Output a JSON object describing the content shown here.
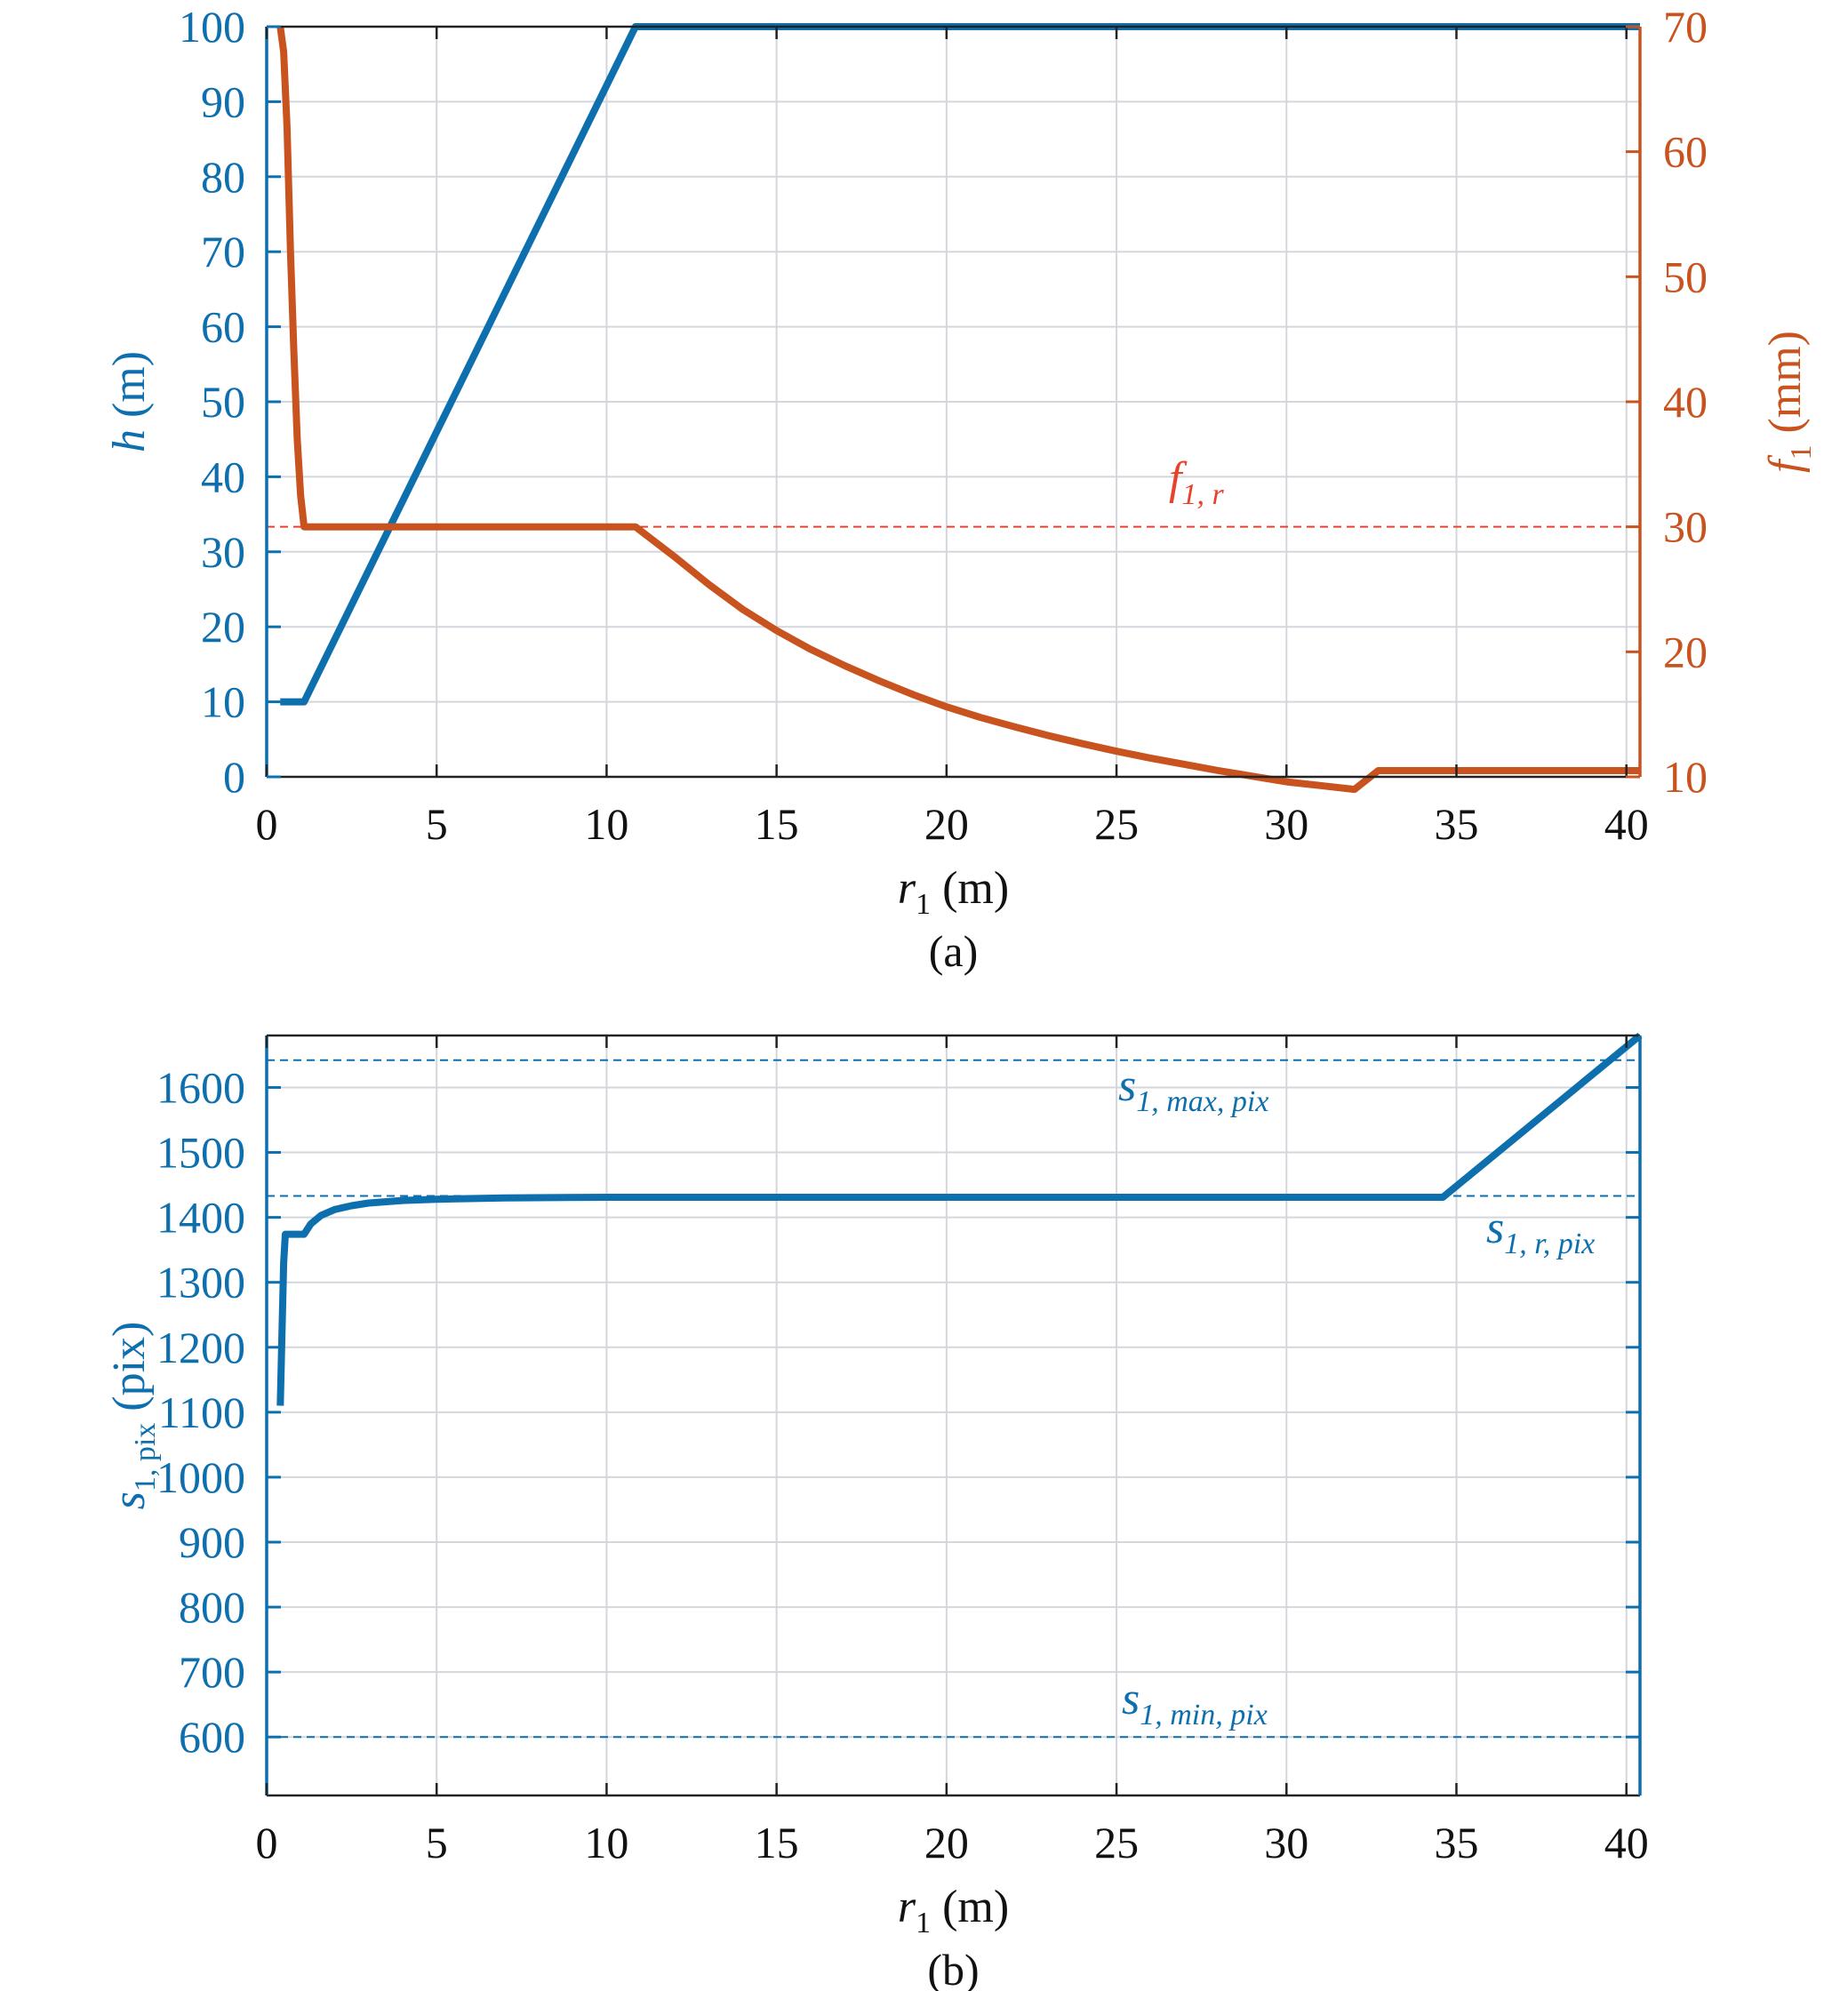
{
  "chart_data": [
    {
      "type": "line",
      "caption": "(a)",
      "xlabel": {
        "var": "r",
        "sub": "1",
        "unit": " (m)"
      },
      "ylabel_left": {
        "var": "h",
        "sub": "",
        "unit": " (m)"
      },
      "ylabel_right": {
        "var": "f",
        "sub": "1",
        "unit": " (mm)"
      },
      "xlim": [
        0,
        40.4
      ],
      "ylim_left": [
        0,
        100
      ],
      "ylim_right": [
        10,
        70
      ],
      "xticks": [
        0,
        5,
        10,
        15,
        20,
        25,
        30,
        35,
        40
      ],
      "yticks_left": [
        0,
        10,
        20,
        30,
        40,
        50,
        60,
        70,
        80,
        90,
        100
      ],
      "yticks_right": [
        10,
        20,
        30,
        40,
        50,
        60,
        70
      ],
      "grid": true,
      "series": [
        {
          "axis": "left",
          "color": "#0E6FAE",
          "x": [
            0.4,
            1.1,
            10.85,
            40.4
          ],
          "y": [
            10,
            10,
            100,
            100
          ]
        },
        {
          "axis": "right",
          "color": "#C9531E",
          "x": [
            0.4,
            0.5,
            0.6,
            0.7,
            0.8,
            0.9,
            1.0,
            1.1,
            10.85,
            12,
            13,
            14,
            15,
            16,
            17,
            18,
            19,
            20,
            21,
            22,
            23,
            24,
            25,
            26,
            27,
            28,
            29,
            30,
            31,
            32,
            32.7,
            40.4
          ],
          "y": [
            70,
            68,
            62,
            52,
            44,
            37,
            32.5,
            30,
            30,
            27.6,
            25.4,
            23.4,
            21.7,
            20.2,
            18.9,
            17.7,
            16.6,
            15.6,
            14.75,
            14.0,
            13.3,
            12.65,
            12.05,
            11.5,
            11.0,
            10.5,
            10.05,
            9.6,
            9.3,
            9.0,
            10.5,
            10.5
          ]
        }
      ],
      "reference_lines": [
        {
          "axis": "right",
          "value": 30,
          "color": "#E8422C",
          "label": {
            "var": "f",
            "sub": "1, r"
          }
        }
      ]
    },
    {
      "type": "line",
      "caption": "(b)",
      "xlabel": {
        "var": "r",
        "sub": "1",
        "unit": " (m)"
      },
      "ylabel_left": {
        "var": "s",
        "sub": "1, pix",
        "unit": " (pix)"
      },
      "xlim": [
        0,
        40.4
      ],
      "ylim": [
        510,
        1680
      ],
      "xticks": [
        0,
        5,
        10,
        15,
        20,
        25,
        30,
        35,
        40
      ],
      "yticks": [
        600,
        700,
        800,
        900,
        1000,
        1100,
        1200,
        1300,
        1400,
        1500,
        1600
      ],
      "grid": true,
      "series": [
        {
          "axis": "left",
          "color": "#0E6FAE",
          "x": [
            0.4,
            0.5,
            0.55,
            1.1,
            1.3,
            1.6,
            2.0,
            2.5,
            3.0,
            4.0,
            5.0,
            7.0,
            10.0,
            20.0,
            34.6,
            40.4
          ],
          "y": [
            1110,
            1330,
            1374,
            1374,
            1390,
            1403,
            1412,
            1418,
            1422,
            1426,
            1428,
            1430,
            1431,
            1431,
            1431,
            1680
          ]
        }
      ],
      "reference_lines": [
        {
          "axis": "left",
          "value": 1642,
          "color": "#0E6FAE",
          "label": {
            "var": "s",
            "sub": "1, max, pix"
          }
        },
        {
          "axis": "left",
          "value": 1433,
          "color": "#0E6FAE",
          "label": {
            "var": "s",
            "sub": "1, r, pix"
          }
        },
        {
          "axis": "left",
          "value": 600,
          "color": "#0E6FAE",
          "label": {
            "var": "s",
            "sub": "1, min, pix"
          }
        }
      ]
    }
  ]
}
